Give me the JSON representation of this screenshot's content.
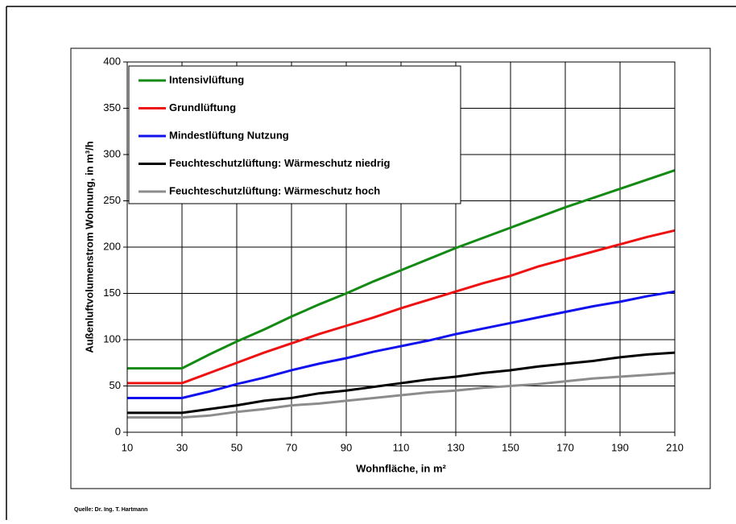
{
  "chart_data": {
    "type": "line",
    "x": [
      10,
      20,
      30,
      40,
      50,
      60,
      70,
      80,
      90,
      100,
      110,
      120,
      130,
      140,
      150,
      160,
      170,
      180,
      190,
      200,
      210
    ],
    "series": [
      {
        "name": "Intensivlüftung",
        "color": "#138a13",
        "values": [
          69,
          69,
          69,
          84,
          98,
          111,
          125,
          138,
          150,
          163,
          175,
          187,
          199,
          210,
          221,
          232,
          243,
          253,
          263,
          273,
          283
        ]
      },
      {
        "name": "Grundlüftung",
        "color": "#ee1111",
        "values": [
          53,
          53,
          53,
          64,
          75,
          86,
          96,
          106,
          115,
          124,
          134,
          143,
          152,
          161,
          169,
          179,
          187,
          195,
          203,
          211,
          218
        ]
      },
      {
        "name": "Mindestlüftung Nutzung",
        "color": "#1111ee",
        "values": [
          37,
          37,
          37,
          44,
          52,
          59,
          67,
          74,
          80,
          87,
          93,
          99,
          106,
          112,
          118,
          124,
          130,
          136,
          141,
          147,
          152
        ]
      },
      {
        "name": "Feuchteschutzlüftung: Wärmeschutz niedrig",
        "color": "#000000",
        "values": [
          21,
          21,
          21,
          25,
          29,
          34,
          37,
          42,
          45,
          49,
          53,
          57,
          60,
          64,
          67,
          71,
          74,
          77,
          81,
          84,
          86
        ]
      },
      {
        "name": "Feuchteschutzlüftung: Wärmeschutz hoch",
        "color": "#8c8c8c",
        "values": [
          16,
          16,
          16,
          18,
          22,
          25,
          29,
          31,
          34,
          37,
          40,
          43,
          45,
          48,
          50,
          52,
          55,
          58,
          60,
          62,
          64
        ]
      }
    ],
    "xlim": [
      10,
      210
    ],
    "xticks": [
      10,
      30,
      50,
      70,
      90,
      110,
      130,
      150,
      170,
      190,
      210
    ],
    "ylim": [
      0,
      400
    ],
    "yticks": [
      0,
      50,
      100,
      150,
      200,
      250,
      300,
      350,
      400
    ],
    "xlabel": "Wohnfläche, in m²",
    "ylabel": "Außenluftvolumenstrom Wohnung, in m³/h",
    "grid": true,
    "legend": "upper left",
    "source": "Quelle: Dr. Ing. T. Hartmann"
  }
}
